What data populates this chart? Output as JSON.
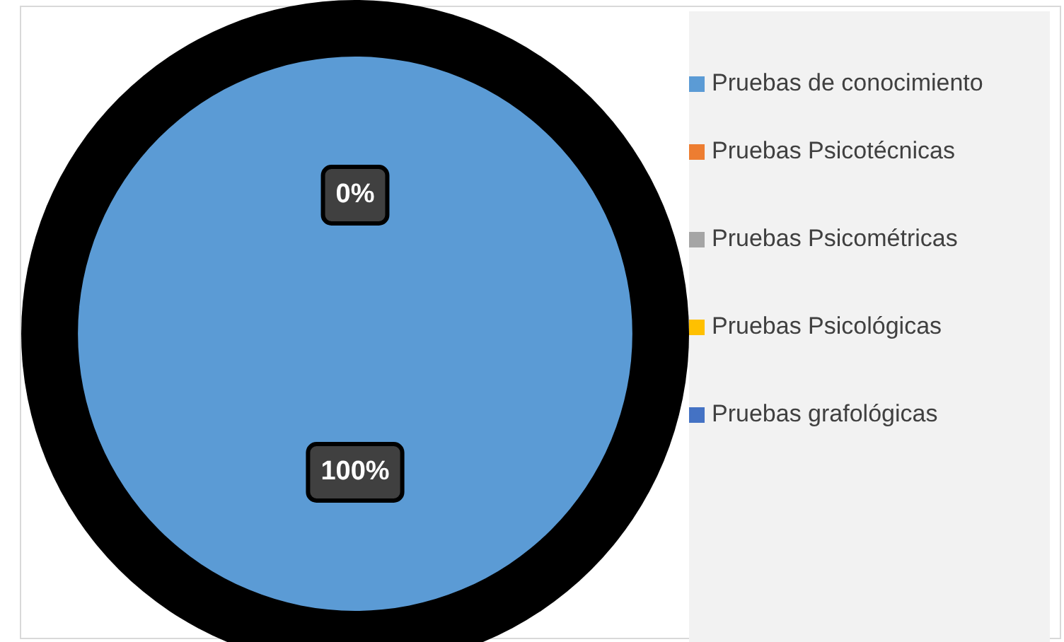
{
  "chart_data": {
    "type": "pie",
    "categories": [
      "Pruebas de conocimiento",
      "Pruebas Psicotécnicas",
      "Pruebas Psicométricas",
      "Pruebas Psicológicas",
      "Pruebas grafológicas"
    ],
    "values": [
      100,
      0,
      0,
      0,
      0
    ],
    "colors": [
      "#5b9bd5",
      "#ed7d31",
      "#a5a5a5",
      "#ffc000",
      "#4472c4"
    ],
    "value_labels": [
      "100%",
      "0%",
      null,
      null,
      null
    ],
    "legend": "right"
  }
}
